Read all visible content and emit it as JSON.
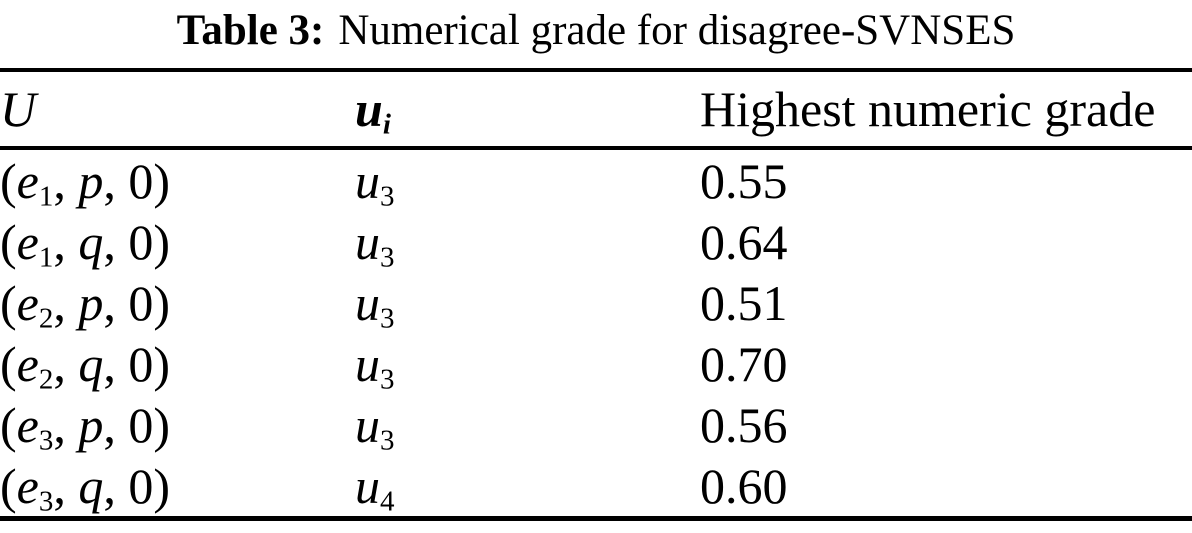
{
  "colors": {
    "background": "#ffffff",
    "text": "#000000"
  },
  "title": {
    "label": "Table 3:",
    "text": "Numerical grade for disagree-SVNSES"
  },
  "table": {
    "header": {
      "col1": "U",
      "col2_letter": "u",
      "col2_sub": "i",
      "col3": "Highest numeric grade"
    },
    "rows": [
      {
        "u_open": "(",
        "u_letter": "e",
        "u_sub": "1",
        "u_sep": ", ",
        "u_param": "p",
        "u_close": ", 0)",
        "ui_letter": "u",
        "ui_sub": "3",
        "grade": "0.55"
      },
      {
        "u_open": "(",
        "u_letter": "e",
        "u_sub": "1",
        "u_sep": ", ",
        "u_param": "q",
        "u_close": ", 0)",
        "ui_letter": "u",
        "ui_sub": "3",
        "grade": "0.64"
      },
      {
        "u_open": "(",
        "u_letter": "e",
        "u_sub": "2",
        "u_sep": ", ",
        "u_param": "p",
        "u_close": ", 0)",
        "ui_letter": "u",
        "ui_sub": "3",
        "grade": "0.51"
      },
      {
        "u_open": "(",
        "u_letter": "e",
        "u_sub": "2",
        "u_sep": ", ",
        "u_param": "q",
        "u_close": ", 0)",
        "ui_letter": "u",
        "ui_sub": "3",
        "grade": "0.70"
      },
      {
        "u_open": "(",
        "u_letter": "e",
        "u_sub": "3",
        "u_sep": ", ",
        "u_param": "p",
        "u_close": ", 0)",
        "ui_letter": "u",
        "ui_sub": "3",
        "grade": "0.56"
      },
      {
        "u_open": "(",
        "u_letter": "e",
        "u_sub": "3",
        "u_sep": ", ",
        "u_param": "q",
        "u_close": ", 0)",
        "ui_letter": "u",
        "ui_sub": "4",
        "grade": "0.60"
      }
    ]
  },
  "chart_data": {
    "type": "table",
    "title": "Table 3: Numerical grade for disagree-SVNSES",
    "columns": [
      "U",
      "u_i",
      "Highest numeric grade"
    ],
    "rows": [
      [
        "(e1, p, 0)",
        "u3",
        0.55
      ],
      [
        "(e1, q, 0)",
        "u3",
        0.64
      ],
      [
        "(e2, p, 0)",
        "u3",
        0.51
      ],
      [
        "(e2, q, 0)",
        "u3",
        0.7
      ],
      [
        "(e3, p, 0)",
        "u3",
        0.56
      ],
      [
        "(e3, q, 0)",
        "u4",
        0.6
      ]
    ]
  }
}
